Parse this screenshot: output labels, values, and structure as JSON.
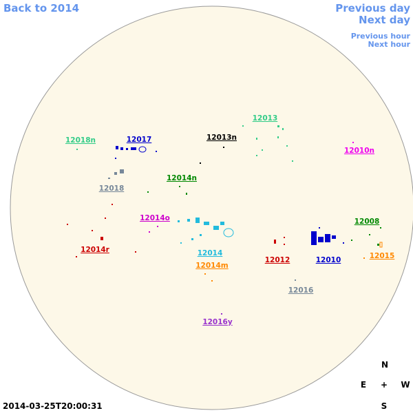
{
  "nav": {
    "back": "Back to 2014",
    "previous_day": "Previous day",
    "next_day": "Next day",
    "previous_hour": "Previous hour",
    "next_hour": "Next hour"
  },
  "regions": [
    {
      "label": "12018n",
      "color": "#33cc88"
    },
    {
      "label": "12017",
      "color": "#0000cc"
    },
    {
      "label": "12013n",
      "color": "#000000"
    },
    {
      "label": "12013",
      "color": "#33cc88"
    },
    {
      "label": "12010n",
      "color": "#ee00ee"
    },
    {
      "label": "12018",
      "color": "#778899"
    },
    {
      "label": "12014n",
      "color": "#008800"
    },
    {
      "label": "12014o",
      "color": "#cc00cc"
    },
    {
      "label": "12008",
      "color": "#008800"
    },
    {
      "label": "12014r",
      "color": "#cc0000"
    },
    {
      "label": "12014",
      "color": "#22bbdd"
    },
    {
      "label": "12012",
      "color": "#cc0000"
    },
    {
      "label": "12010",
      "color": "#0000cc"
    },
    {
      "label": "12015",
      "color": "#ff8800"
    },
    {
      "label": "12014m",
      "color": "#ff8800"
    },
    {
      "label": "12016",
      "color": "#778899"
    },
    {
      "label": "12016y",
      "color": "#9933cc"
    }
  ],
  "compass": {
    "north": "N",
    "east": "E",
    "center": "+",
    "west": "W",
    "south": "S"
  },
  "timestamp": "2014-03-25T20:00:31"
}
